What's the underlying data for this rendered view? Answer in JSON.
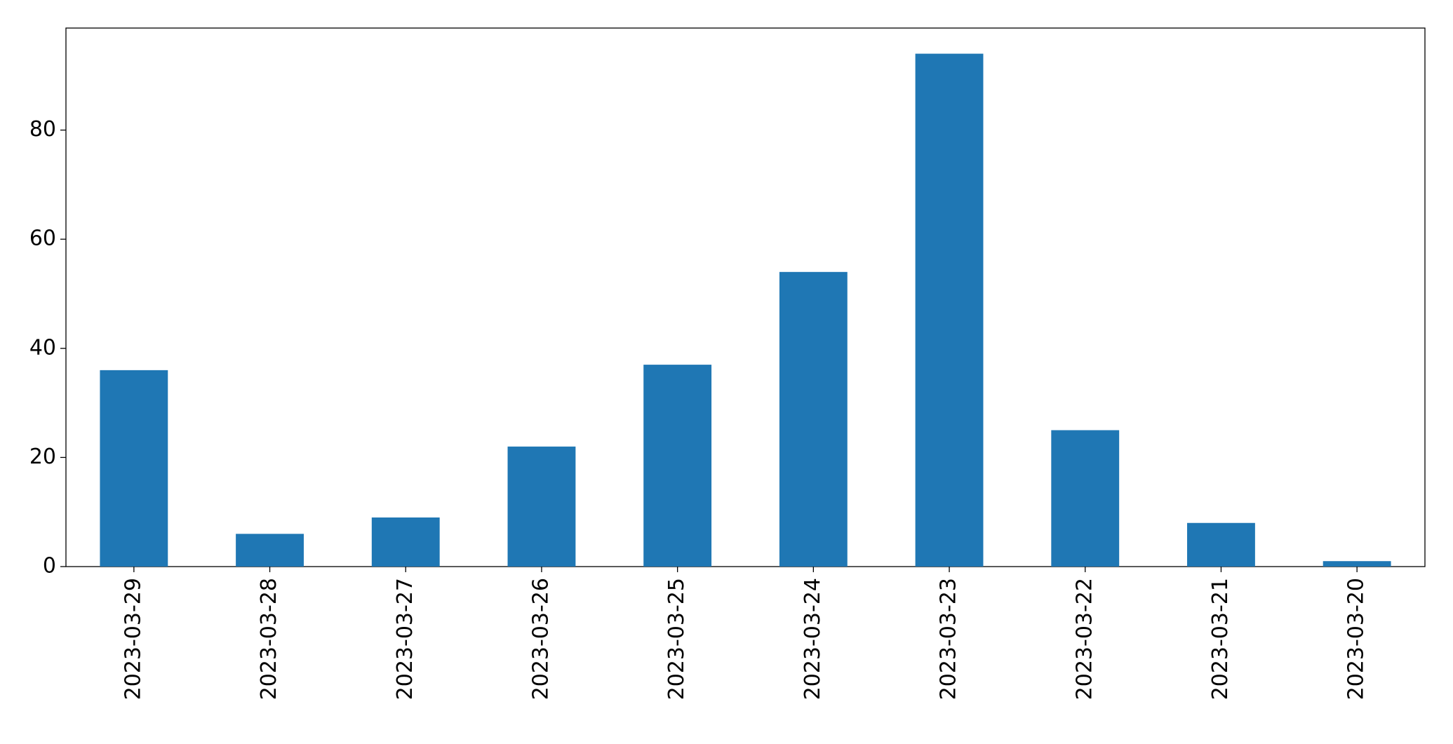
{
  "chart_data": {
    "type": "bar",
    "categories": [
      "2023-03-29",
      "2023-03-28",
      "2023-03-27",
      "2023-03-26",
      "2023-03-25",
      "2023-03-24",
      "2023-03-23",
      "2023-03-22",
      "2023-03-21",
      "2023-03-20"
    ],
    "values": [
      36,
      6,
      9,
      22,
      37,
      54,
      94,
      25,
      8,
      1
    ],
    "color": "#1f77b4",
    "ylim": [
      0,
      98.7
    ],
    "yticks": [
      0,
      20,
      40,
      60,
      80
    ],
    "grid": false
  }
}
